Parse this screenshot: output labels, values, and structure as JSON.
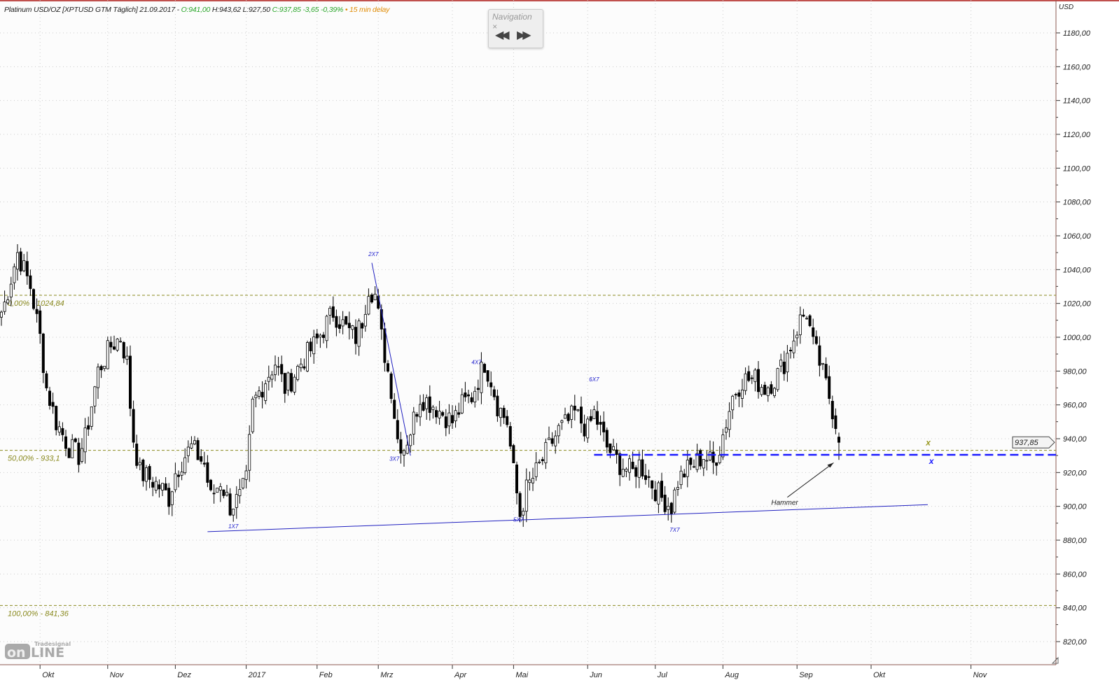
{
  "header": {
    "symbol": "Platinum USD/OZ [XPTUSD GTM Täglich] 21.09.2017 -",
    "open": "O:941,00",
    "high": "H:943,62",
    "low": "L:927,50",
    "close": "C:937,85 -3,65 -0,39%",
    "delay": "• 15 min delay"
  },
  "navigation": {
    "title": "Navigation",
    "close": "×",
    "back": "◀◀",
    "forward": "▶▶"
  },
  "logo": {
    "brand": "Tradesignal",
    "text": "online"
  },
  "chart_data": {
    "type": "candlestick",
    "title": "Platinum USD/OZ",
    "currency_label": "USD",
    "ylim": [
      810,
      1190
    ],
    "yticks": [
      820,
      840,
      860,
      880,
      900,
      920,
      940,
      960,
      980,
      1000,
      1020,
      1040,
      1060,
      1080,
      1100,
      1120,
      1140,
      1160,
      1180
    ],
    "ytick_labels": [
      "820,00",
      "840,00",
      "860,00",
      "880,00",
      "900,00",
      "920,00",
      "940,00",
      "960,00",
      "980,00",
      "1000,00",
      "1020,00",
      "1040,00",
      "1060,00",
      "1080,00",
      "1100,00",
      "1120,00",
      "1140,00",
      "1160,00",
      "1180,00"
    ],
    "x_unit": "trading day index",
    "xlim": [
      0,
      327
    ],
    "xticks": [
      {
        "day": 12,
        "label": "Okt"
      },
      {
        "day": 33,
        "label": "Nov"
      },
      {
        "day": 54,
        "label": "Dez"
      },
      {
        "day": 76,
        "label": "2017"
      },
      {
        "day": 98,
        "label": "Feb"
      },
      {
        "day": 117,
        "label": "Mrz"
      },
      {
        "day": 140,
        "label": "Apr"
      },
      {
        "day": 159,
        "label": "Mai"
      },
      {
        "day": 182,
        "label": "Jun"
      },
      {
        "day": 203,
        "label": "Jul"
      },
      {
        "day": 224,
        "label": "Aug"
      },
      {
        "day": 247,
        "label": "Sep"
      },
      {
        "day": 270,
        "label": "Okt"
      },
      {
        "day": 301,
        "label": "Nov"
      }
    ],
    "close_path": [
      [
        0,
        1015
      ],
      [
        1,
        1020
      ],
      [
        5,
        1050
      ],
      [
        9,
        1030
      ],
      [
        12,
        1000
      ],
      [
        14,
        970
      ],
      [
        17,
        950
      ],
      [
        21,
        935
      ],
      [
        24,
        930
      ],
      [
        26,
        940
      ],
      [
        28,
        960
      ],
      [
        30,
        980
      ],
      [
        34,
        995
      ],
      [
        37,
        1000
      ],
      [
        39,
        985
      ],
      [
        40,
        960
      ],
      [
        41,
        940
      ],
      [
        43,
        920
      ],
      [
        47,
        915
      ],
      [
        50,
        910
      ],
      [
        52,
        905
      ],
      [
        54,
        920
      ],
      [
        57,
        930
      ],
      [
        59,
        935
      ],
      [
        61,
        930
      ],
      [
        63,
        925
      ],
      [
        65,
        905
      ],
      [
        68,
        915
      ],
      [
        71,
        900
      ],
      [
        74,
        905
      ],
      [
        76,
        915
      ],
      [
        78,
        960
      ],
      [
        82,
        975
      ],
      [
        85,
        985
      ],
      [
        88,
        970
      ],
      [
        90,
        975
      ],
      [
        93,
        985
      ],
      [
        97,
        995
      ],
      [
        100,
        1005
      ],
      [
        103,
        1015
      ],
      [
        107,
        1005
      ],
      [
        110,
        1000
      ],
      [
        112,
        1010
      ],
      [
        114,
        1030
      ],
      [
        116,
        1025
      ],
      [
        118,
        1000
      ],
      [
        121,
        970
      ],
      [
        123,
        940
      ],
      [
        125,
        935
      ],
      [
        127,
        945
      ],
      [
        130,
        965
      ],
      [
        134,
        960
      ],
      [
        137,
        955
      ],
      [
        140,
        950
      ],
      [
        143,
        960
      ],
      [
        146,
        965
      ],
      [
        148,
        975
      ],
      [
        150,
        985
      ],
      [
        152,
        975
      ],
      [
        154,
        960
      ],
      [
        157,
        950
      ],
      [
        159,
        920
      ],
      [
        161,
        895
      ],
      [
        163,
        910
      ],
      [
        166,
        920
      ],
      [
        170,
        935
      ],
      [
        173,
        945
      ],
      [
        176,
        950
      ],
      [
        178,
        955
      ],
      [
        182,
        945
      ],
      [
        184,
        955
      ],
      [
        186,
        945
      ],
      [
        188,
        935
      ],
      [
        190,
        930
      ],
      [
        192,
        925
      ],
      [
        196,
        920
      ],
      [
        198,
        925
      ],
      [
        200,
        920
      ],
      [
        203,
        910
      ],
      [
        205,
        905
      ],
      [
        208,
        900
      ],
      [
        210,
        915
      ],
      [
        212,
        920
      ],
      [
        215,
        925
      ],
      [
        218,
        930
      ],
      [
        221,
        925
      ],
      [
        223,
        935
      ],
      [
        225,
        950
      ],
      [
        227,
        965
      ],
      [
        230,
        975
      ],
      [
        234,
        975
      ],
      [
        237,
        970
      ],
      [
        240,
        975
      ],
      [
        243,
        985
      ],
      [
        246,
        1000
      ],
      [
        248,
        1010
      ],
      [
        250,
        1015
      ],
      [
        252,
        995
      ],
      [
        254,
        985
      ],
      [
        257,
        965
      ],
      [
        259,
        950
      ],
      [
        260,
        937.85
      ]
    ],
    "last_candle": {
      "open": 941.0,
      "high": 943.62,
      "low": 927.5,
      "close": 937.85
    },
    "last_price_label": "937,85",
    "fibonacci": [
      {
        "level": 1024.84,
        "label": "0,00% - 1024,84"
      },
      {
        "level": 933.1,
        "label": "50,00% - 933,1"
      },
      {
        "level": 841.36,
        "label": "100,00% - 841,36"
      }
    ],
    "trendline": {
      "from": [
        64,
        885
      ],
      "to": [
        287.6,
        901
      ]
    },
    "support_line": {
      "from_day": 184,
      "price": 930.5
    },
    "falling_line": {
      "from": [
        115,
        1044
      ],
      "to": [
        127,
        930
      ]
    },
    "pattern_labels": [
      {
        "day": 72,
        "price": 887,
        "text": "1X7"
      },
      {
        "day": 115.5,
        "price": 1048,
        "text": "2X7"
      },
      {
        "day": 122,
        "price": 927,
        "text": "3X7"
      },
      {
        "day": 147.5,
        "price": 984,
        "text": "4X7"
      },
      {
        "day": 160.5,
        "price": 891,
        "text": "5X7"
      },
      {
        "day": 184,
        "price": 974,
        "text": "6X7"
      },
      {
        "day": 209,
        "price": 885,
        "text": "7X7"
      }
    ],
    "annotation": {
      "text": "Hammer",
      "text_day": 239,
      "text_price": 900,
      "arrow_to": [
        259,
        927
      ]
    },
    "markers": [
      {
        "day": 287,
        "price": 936,
        "text": "x",
        "color": "#999922"
      },
      {
        "day": 288,
        "price": 925,
        "text": "x",
        "color": "#1a1aff"
      }
    ]
  }
}
